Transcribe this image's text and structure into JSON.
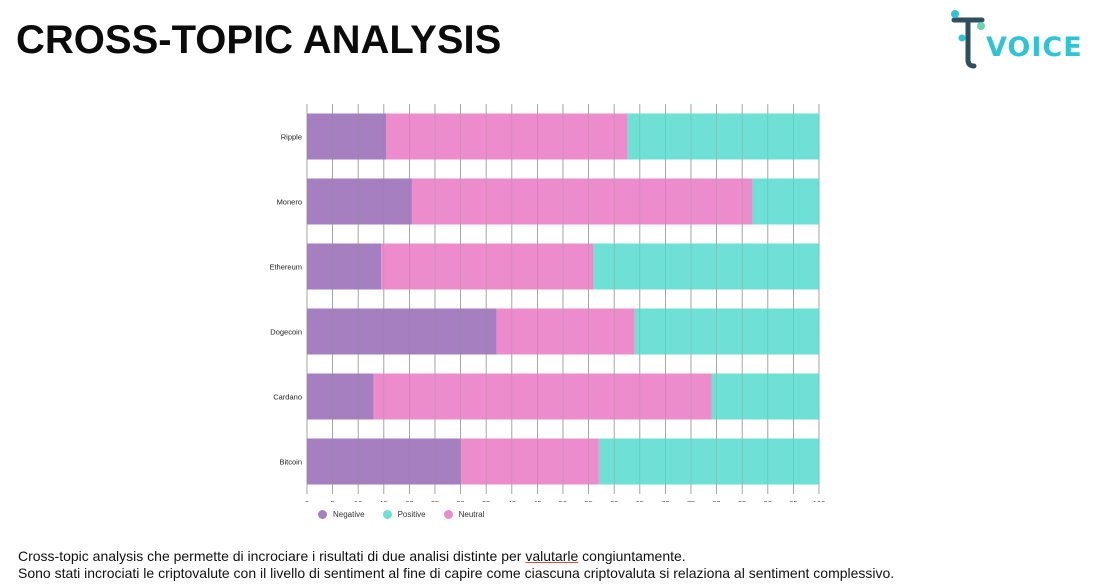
{
  "page": {
    "title": "CROSS-TOPIC ANALYSIS",
    "logo_text": "VOICE",
    "caption_line1_before": "Cross-topic analysis che permette di incrociare i risultati di due analisi distinte per ",
    "caption_line1_underlined": "valutarle",
    "caption_line1_after": " congiuntamente.",
    "caption_line2": "Sono stati incrociati le criptovalute con il livello di sentiment al fine di capire come ciascuna criptovaluta si relaziona al sentiment complessivo."
  },
  "colors": {
    "negative": "#a67fc0",
    "neutral": "#ec8ccd",
    "positive": "#6ee0d5",
    "logo_dark": "#2f4f5f",
    "logo_accent": "#2ec4d4"
  },
  "chart_data": {
    "type": "bar",
    "orientation": "horizontal",
    "stacked": true,
    "categories": [
      "Ripple",
      "Monero",
      "Ethereum",
      "Dogecoin",
      "Cardano",
      "Bitcoin"
    ],
    "series": [
      {
        "name": "Negative",
        "values": [
          15.5,
          20.5,
          14.5,
          37,
          13,
          30
        ]
      },
      {
        "name": "Neutral",
        "values": [
          47,
          66.5,
          41.5,
          27,
          66,
          27
        ]
      },
      {
        "name": "Positive",
        "values": [
          37.5,
          13,
          44,
          36,
          21,
          43
        ]
      }
    ],
    "xlim": [
      0,
      100
    ],
    "xticks": [
      0,
      5,
      10,
      15,
      20,
      25,
      30,
      35,
      40,
      45,
      50,
      55,
      60,
      65,
      70,
      75,
      80,
      85,
      90,
      95,
      100
    ],
    "legend": {
      "position": "bottom-left",
      "entries": [
        "Negative",
        "Positive",
        "Neutral"
      ]
    },
    "grid": true
  }
}
